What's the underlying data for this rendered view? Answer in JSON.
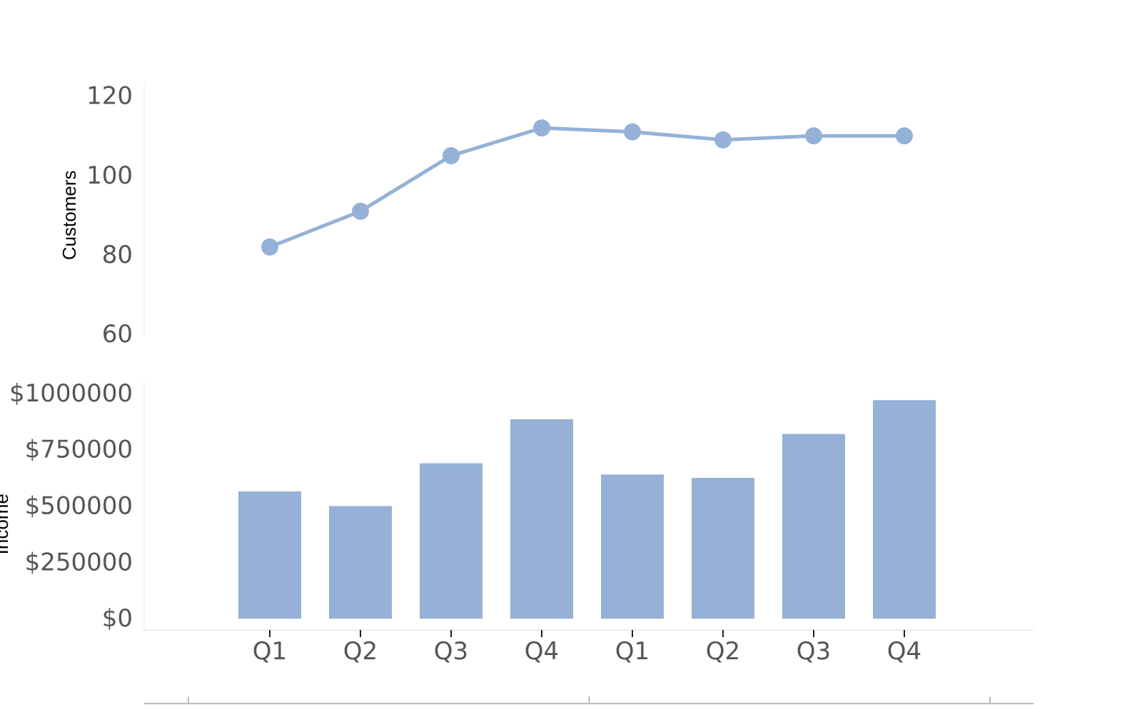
{
  "chart_data": [
    {
      "type": "line",
      "categories": [
        "Q1",
        "Q2",
        "Q3",
        "Q4",
        "Q1",
        "Q2",
        "Q3",
        "Q4"
      ],
      "values": [
        82,
        91,
        105,
        112,
        111,
        109,
        110,
        110
      ],
      "ylabel": "Customers",
      "ylim": [
        60,
        123
      ],
      "yticks": [
        "60",
        "80",
        "100",
        "120"
      ],
      "ytick_values": [
        60,
        80,
        100,
        120
      ],
      "color": "#95b1d7",
      "grid": false
    },
    {
      "type": "bar",
      "categories": [
        "Q1",
        "Q2",
        "Q3",
        "Q4",
        "Q1",
        "Q2",
        "Q3",
        "Q4"
      ],
      "values": [
        565000,
        500000,
        690000,
        885000,
        640000,
        625000,
        820000,
        970000
      ],
      "ylabel": "Income",
      "ylim": [
        -50000,
        1050000
      ],
      "yticks": [
        "$0",
        "$250000",
        "$500000",
        "$750000",
        "$1000000"
      ],
      "ytick_values": [
        0,
        250000,
        500000,
        750000,
        1000000
      ],
      "color": "#95b1d7",
      "grid": false
    }
  ],
  "xaxis": {
    "tick_labels": [
      "Q1",
      "Q2",
      "Q3",
      "Q4",
      "Q1",
      "Q2",
      "Q3",
      "Q4"
    ],
    "group_divisions": 2
  }
}
